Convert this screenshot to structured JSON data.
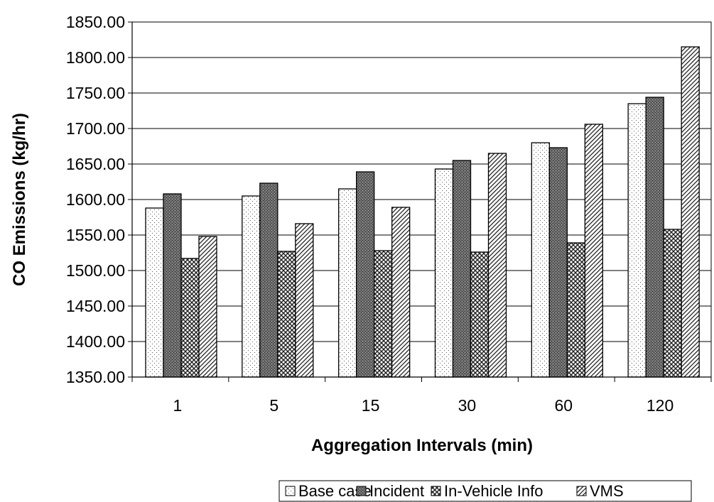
{
  "chart_data": {
    "type": "bar",
    "title": "",
    "xlabel": "Aggregation Intervals (min)",
    "ylabel": "CO Emissions (kg/hr)",
    "categories": [
      "1",
      "5",
      "15",
      "30",
      "60",
      "120"
    ],
    "series": [
      {
        "name": "Base case",
        "values": [
          1588,
          1605,
          1615,
          1643,
          1680,
          1735
        ]
      },
      {
        "name": "Incident",
        "values": [
          1608,
          1623,
          1639,
          1655,
          1673,
          1744
        ]
      },
      {
        "name": "In-Vehicle Info",
        "values": [
          1517,
          1527,
          1528,
          1526,
          1539,
          1558
        ]
      },
      {
        "name": "VMS",
        "values": [
          1548,
          1566,
          1589,
          1665,
          1706,
          1815
        ]
      }
    ],
    "ylim": [
      1350,
      1850
    ],
    "yticks": [
      "1350.00",
      "1400.00",
      "1450.00",
      "1500.00",
      "1550.00",
      "1600.00",
      "1650.00",
      "1700.00",
      "1750.00",
      "1800.00",
      "1850.00"
    ],
    "grid": "horizontal",
    "legend_position": "bottom"
  }
}
